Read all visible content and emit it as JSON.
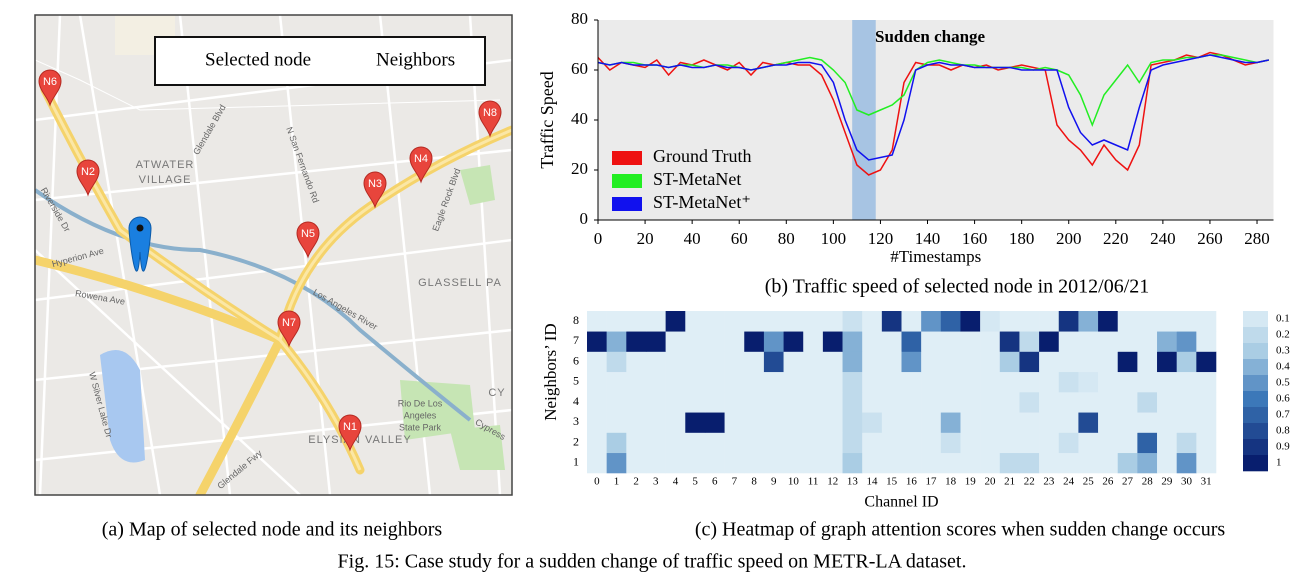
{
  "map": {
    "legend": {
      "selected": "Selected node",
      "neighbors": "Neighbors"
    },
    "nodes": [
      "N1",
      "N2",
      "N3",
      "N4",
      "N5",
      "N6",
      "N7",
      "N8"
    ],
    "labels": [
      "ATWATER",
      "VILLAGE",
      "GLASSELL PA",
      "ELYSIAN VALLEY",
      "Rio De Los",
      "Angeles",
      "State Park",
      "Hyperion Ave",
      "Rowena Ave",
      "Riverside Dr",
      "Glendale Blvd",
      "N San Fernando Rd",
      "Los Angeles River",
      "Glendale Fwy",
      "W Silver Lake Dr",
      "Cypress",
      "Eagle Rock Blvd",
      "CY"
    ]
  },
  "chart_data": [
    {
      "type": "line",
      "annotation": "Sudden change",
      "highlight": [
        108,
        118
      ],
      "xlabel": "#Timestamps",
      "ylabel": "Traffic Speed",
      "xlim": [
        0,
        287
      ],
      "ylim": [
        0,
        80
      ],
      "xticks": [
        0,
        20,
        40,
        60,
        80,
        100,
        120,
        140,
        160,
        180,
        200,
        220,
        240,
        260,
        280
      ],
      "yticks": [
        0,
        20,
        40,
        60,
        80
      ],
      "legend": "lower left",
      "x": [
        0,
        5,
        10,
        15,
        20,
        25,
        30,
        35,
        40,
        45,
        50,
        55,
        60,
        65,
        70,
        75,
        80,
        85,
        90,
        95,
        100,
        105,
        110,
        115,
        120,
        125,
        130,
        135,
        140,
        145,
        150,
        155,
        160,
        165,
        170,
        175,
        180,
        185,
        190,
        195,
        200,
        205,
        210,
        215,
        220,
        225,
        230,
        235,
        240,
        245,
        250,
        255,
        260,
        265,
        270,
        275,
        280,
        285
      ],
      "series": [
        {
          "name": "Ground Truth",
          "color": "#ee1111",
          "values": [
            65,
            60,
            63,
            62,
            61,
            64,
            58,
            63,
            62,
            64,
            62,
            60,
            63,
            58,
            63,
            62,
            63,
            62,
            62,
            58,
            48,
            35,
            22,
            18,
            20,
            28,
            55,
            63,
            62,
            62,
            60,
            62,
            61,
            62,
            60,
            61,
            62,
            61,
            60,
            38,
            32,
            28,
            22,
            30,
            24,
            20,
            30,
            62,
            63,
            64,
            66,
            65,
            67,
            66,
            64,
            62,
            63,
            64
          ]
        },
        {
          "name": "ST-MetaNet",
          "color": "#22ee22",
          "values": [
            63,
            62,
            63,
            63,
            62,
            62,
            61,
            62,
            62,
            61,
            62,
            62,
            61,
            60,
            61,
            62,
            63,
            64,
            65,
            64,
            60,
            55,
            44,
            42,
            44,
            46,
            50,
            60,
            63,
            64,
            63,
            62,
            62,
            61,
            61,
            61,
            61,
            60,
            61,
            60,
            58,
            50,
            38,
            50,
            56,
            62,
            55,
            63,
            64,
            64,
            65,
            65,
            66,
            66,
            65,
            64,
            63,
            64
          ]
        },
        {
          "name": "ST-MetaNet⁺",
          "color": "#1111ee",
          "values": [
            63,
            62,
            63,
            62,
            62,
            62,
            61,
            62,
            61,
            61,
            62,
            61,
            61,
            60,
            61,
            62,
            62,
            63,
            63,
            62,
            55,
            40,
            28,
            24,
            25,
            26,
            40,
            60,
            62,
            63,
            62,
            62,
            61,
            61,
            61,
            61,
            60,
            60,
            60,
            60,
            45,
            35,
            30,
            32,
            30,
            28,
            45,
            60,
            62,
            63,
            64,
            65,
            66,
            65,
            64,
            63,
            63,
            64
          ]
        }
      ]
    },
    {
      "type": "heatmap",
      "xlabel": "Channel ID",
      "ylabel": "Neighbors’ ID",
      "x_categories": [
        "0",
        "1",
        "2",
        "3",
        "4",
        "5",
        "6",
        "7",
        "8",
        "9",
        "10",
        "11",
        "12",
        "13",
        "14",
        "15",
        "16",
        "17",
        "18",
        "19",
        "20",
        "21",
        "22",
        "23",
        "24",
        "25",
        "26",
        "27",
        "28",
        "29",
        "30",
        "31"
      ],
      "y_categories": [
        "1",
        "2",
        "3",
        "4",
        "5",
        "6",
        "7",
        "8"
      ],
      "colorbar_ticks": [
        0.1,
        0.2,
        0.3,
        0.4,
        0.5,
        0.6,
        0.7,
        0.8,
        0.9,
        1
      ],
      "values": [
        [
          0.05,
          0.5,
          0.05,
          0.05,
          0.05,
          0.05,
          0.05,
          0.05,
          0.05,
          0.05,
          0.05,
          0.05,
          0.05,
          0.3,
          0.05,
          0.05,
          0.05,
          0.05,
          0.05,
          0.05,
          0.05,
          0.2,
          0.2,
          0.05,
          0.05,
          0.05,
          0.05,
          0.3,
          0.4,
          0.05,
          0.5,
          0.05
        ],
        [
          0.05,
          0.3,
          0.05,
          0.05,
          0.05,
          0.05,
          0.05,
          0.05,
          0.05,
          0.05,
          0.05,
          0.05,
          0.05,
          0.2,
          0.05,
          0.05,
          0.05,
          0.05,
          0.15,
          0.05,
          0.05,
          0.05,
          0.05,
          0.05,
          0.15,
          0.05,
          0.05,
          0.05,
          0.7,
          0.05,
          0.2,
          0.05
        ],
        [
          0.05,
          0.05,
          0.05,
          0.05,
          0.05,
          1,
          1,
          0.05,
          0.05,
          0.05,
          0.05,
          0.05,
          0.05,
          0.2,
          0.15,
          0.05,
          0.05,
          0.05,
          0.4,
          0.05,
          0.05,
          0.05,
          0.05,
          0.05,
          0.05,
          0.8,
          0.05,
          0.05,
          0.05,
          0.05,
          0.05,
          0.05
        ],
        [
          0.05,
          0.05,
          0.05,
          0.05,
          0.05,
          0.05,
          0.05,
          0.05,
          0.05,
          0.05,
          0.05,
          0.05,
          0.05,
          0.2,
          0.05,
          0.05,
          0.05,
          0.05,
          0.05,
          0.05,
          0.05,
          0.05,
          0.15,
          0.05,
          0.05,
          0.05,
          0.05,
          0.05,
          0.2,
          0.05,
          0.05,
          0.05
        ],
        [
          0.05,
          0.05,
          0.05,
          0.05,
          0.05,
          0.05,
          0.05,
          0.05,
          0.05,
          0.05,
          0.05,
          0.05,
          0.05,
          0.2,
          0.05,
          0.05,
          0.05,
          0.05,
          0.05,
          0.05,
          0.05,
          0.05,
          0.05,
          0.05,
          0.15,
          0.1,
          0.05,
          0.05,
          0.05,
          0.05,
          0.05,
          0.05
        ],
        [
          0.05,
          0.2,
          0.05,
          0.05,
          0.05,
          0.05,
          0.05,
          0.05,
          0.05,
          0.8,
          0.05,
          0.05,
          0.05,
          0.4,
          0.05,
          0.05,
          0.5,
          0.05,
          0.05,
          0.05,
          0.05,
          0.3,
          0.9,
          0.05,
          0.05,
          0.05,
          0.05,
          1,
          0.05,
          1,
          0.3,
          1
        ],
        [
          1,
          0.4,
          1,
          1,
          0.05,
          0.05,
          0.05,
          0.05,
          1,
          0.5,
          1,
          0.05,
          1,
          0.4,
          0.05,
          0.05,
          0.7,
          0.05,
          0.05,
          0.05,
          0.05,
          0.9,
          0.2,
          1,
          0.05,
          0.05,
          0.05,
          0.05,
          0.05,
          0.4,
          0.5,
          0.05
        ],
        [
          0.05,
          0.05,
          0.05,
          0.05,
          1,
          0.05,
          0.05,
          0.05,
          0.05,
          0.05,
          0.05,
          0.05,
          0.05,
          0.15,
          0.05,
          0.9,
          0.05,
          0.5,
          0.7,
          1,
          0.1,
          0.05,
          0.05,
          0.05,
          0.9,
          0.4,
          1,
          0.05,
          0.05,
          0.05,
          0.05,
          0.05
        ]
      ]
    }
  ],
  "captions": {
    "a": "(a) Map of selected node and its neighbors",
    "b": "(b) Traffic speed of selected node in 2012/06/21",
    "c": "(c) Heatmap of graph attention scores when sudden change occurs",
    "figure": "Fig. 15: Case study for a sudden change of traffic speed on METR-LA dataset."
  }
}
